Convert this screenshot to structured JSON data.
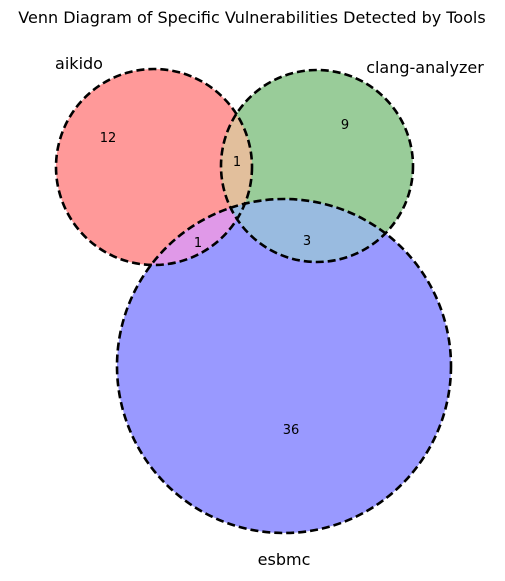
{
  "title": "Venn Diagram of Specific Vulnerabilities Detected by Tools",
  "sets": [
    {
      "id": "aikido",
      "label": "aikido",
      "color": "#ff9999"
    },
    {
      "id": "clang",
      "label": "clang-analyzer",
      "color": "#99cc99"
    },
    {
      "id": "esbmc",
      "label": "esbmc",
      "color": "#9999ff"
    }
  ],
  "regions": {
    "aikido_only": "12",
    "clang_only": "9",
    "esbmc_only": "36",
    "aikido_clang": "1",
    "aikido_esbmc": "1",
    "clang_esbmc": "3"
  },
  "overlap_colors": {
    "aikido_clang": "#e2bf9c",
    "aikido_esbmc": "#e099e8",
    "clang_esbmc": "#99bbe0"
  },
  "outline_style": "dashed"
}
